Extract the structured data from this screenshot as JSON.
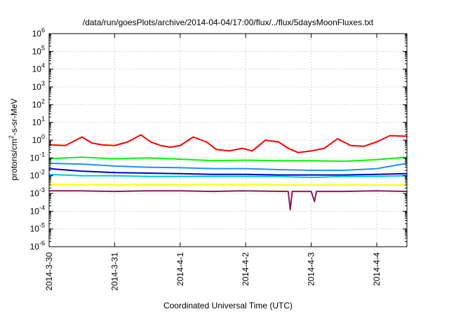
{
  "chart_data": {
    "type": "line",
    "title": "/data/run/goesPlots/archive/2014-04-04/17:00/flux/../flux/5daysMoonFluxes.txt",
    "xlabel": "Coordinated Universal Time (UTC)",
    "ylabel": "protons/cm²-s-sr-MeV",
    "yscale": "log",
    "ylim": [
      1e-06,
      1000000.0
    ],
    "xlim": [
      0,
      5.46
    ],
    "x_unit": "days since 2014-3-30 00:00 UTC",
    "x_ticks": [
      {
        "x": 0,
        "label": "2014-3-30"
      },
      {
        "x": 1,
        "label": "2014-3-31"
      },
      {
        "x": 2,
        "label": "2014-4-1"
      },
      {
        "x": 3,
        "label": "2014-4-2"
      },
      {
        "x": 4,
        "label": "2014-4-3"
      },
      {
        "x": 5,
        "label": "2014-4-4"
      }
    ],
    "y_ticks": [
      {
        "exp": -6,
        "label": "10",
        "sup": "-6"
      },
      {
        "exp": -5,
        "label": "10",
        "sup": "-5"
      },
      {
        "exp": -4,
        "label": "10",
        "sup": "-4"
      },
      {
        "exp": -3,
        "label": "10",
        "sup": "-3"
      },
      {
        "exp": -2,
        "label": "10",
        "sup": "-2"
      },
      {
        "exp": -1,
        "label": "10",
        "sup": "-1"
      },
      {
        "exp": 0,
        "label": "10",
        "sup": "0"
      },
      {
        "exp": 1,
        "label": "10",
        "sup": "1"
      },
      {
        "exp": 2,
        "label": "10",
        "sup": "2"
      },
      {
        "exp": 3,
        "label": "10",
        "sup": "3"
      },
      {
        "exp": 4,
        "label": "10",
        "sup": "4"
      },
      {
        "exp": 5,
        "label": "10",
        "sup": "5"
      },
      {
        "exp": 6,
        "label": "10",
        "sup": "6"
      }
    ],
    "grid": {
      "x": true,
      "y": true,
      "style": "dotted"
    },
    "legend": "none",
    "series": [
      {
        "color": "#ff0000",
        "x": [
          0,
          0.25,
          0.5,
          0.65,
          0.8,
          1.0,
          1.2,
          1.4,
          1.55,
          1.7,
          1.85,
          2.0,
          2.2,
          2.4,
          2.55,
          2.75,
          2.95,
          3.1,
          3.3,
          3.5,
          3.65,
          3.8,
          4.0,
          4.2,
          4.4,
          4.6,
          4.8,
          5.0,
          5.2,
          5.4,
          5.46
        ],
        "values": [
          0.55,
          0.5,
          1.5,
          0.7,
          0.55,
          0.5,
          0.8,
          2.0,
          0.8,
          0.5,
          0.4,
          0.5,
          1.5,
          0.8,
          0.3,
          0.25,
          0.35,
          0.25,
          1.0,
          0.8,
          0.35,
          0.2,
          0.25,
          0.35,
          1.2,
          0.5,
          0.45,
          0.8,
          1.8,
          1.7,
          1.6
        ]
      },
      {
        "color": "#00ff00",
        "x": [
          0,
          0.5,
          1.0,
          1.5,
          2.0,
          2.5,
          3.0,
          3.5,
          4.0,
          4.5,
          5.0,
          5.46
        ],
        "values": [
          0.09,
          0.11,
          0.09,
          0.1,
          0.085,
          0.07,
          0.075,
          0.07,
          0.07,
          0.065,
          0.08,
          0.11
        ]
      },
      {
        "color": "#1e90ff",
        "x": [
          0,
          0.5,
          1.0,
          1.5,
          2.0,
          2.5,
          3.0,
          3.5,
          4.0,
          4.5,
          5.0,
          5.46
        ],
        "values": [
          0.05,
          0.045,
          0.035,
          0.03,
          0.028,
          0.025,
          0.025,
          0.022,
          0.02,
          0.02,
          0.025,
          0.05
        ]
      },
      {
        "color": "#0000cd",
        "x": [
          0,
          0.5,
          1.0,
          1.5,
          2.0,
          2.5,
          3.0,
          3.5,
          4.0,
          4.5,
          5.0,
          5.46
        ],
        "values": [
          0.025,
          0.018,
          0.015,
          0.014,
          0.013,
          0.012,
          0.012,
          0.011,
          0.011,
          0.011,
          0.012,
          0.013
        ]
      },
      {
        "color": "#00ced1",
        "x": [
          0,
          0.5,
          1.0,
          1.5,
          2.0,
          2.5,
          3.0,
          3.5,
          4.0,
          4.5,
          5.0,
          5.46
        ],
        "values": [
          0.012,
          0.01,
          0.01,
          0.009,
          0.009,
          0.009,
          0.009,
          0.009,
          0.008,
          0.009,
          0.009,
          0.01
        ]
      },
      {
        "color": "#ffff00",
        "x": [
          0,
          1.0,
          2.0,
          3.0,
          4.0,
          5.0,
          5.46
        ],
        "values": [
          0.0032,
          0.0031,
          0.0031,
          0.0031,
          0.003,
          0.003,
          0.003
        ]
      },
      {
        "color": "#8b1a5a",
        "x": [
          0,
          0.5,
          1.0,
          1.5,
          2.0,
          2.5,
          2.95,
          3.65,
          3.68,
          3.71,
          4.0,
          4.05,
          4.08,
          4.5,
          5.0,
          5.46
        ],
        "values": [
          0.0014,
          0.0014,
          0.0013,
          0.0014,
          0.0014,
          0.0013,
          0.0014,
          0.0013,
          0.00012,
          0.0013,
          0.0013,
          0.00035,
          0.0013,
          0.0013,
          0.0014,
          0.0013
        ]
      }
    ]
  }
}
